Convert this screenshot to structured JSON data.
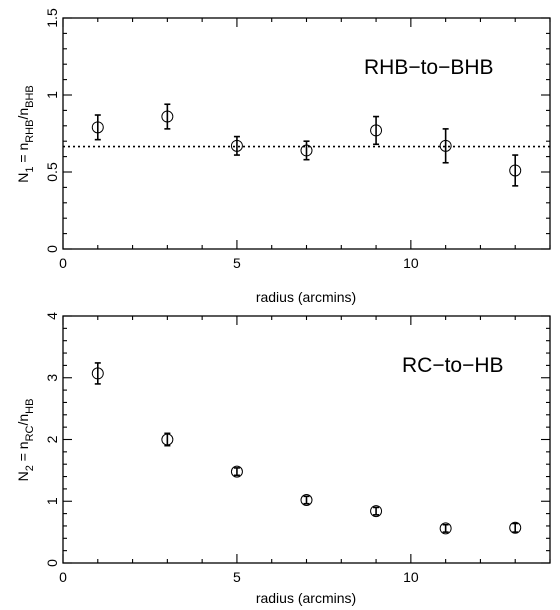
{
  "chart_data": [
    {
      "type": "scatter",
      "xlabel": "radius (arcmins)",
      "ylabel": "N_1 = n_RHB/n_BHB",
      "ylabel_main": "N",
      "ylabel_sub": "1",
      "ylabel_eq": " = n",
      "ylabel_num_sub": "RHB",
      "ylabel_slash": "/n",
      "ylabel_den_sub": "BHB",
      "annotation": "RHB−to−BHB",
      "xlim": [
        0,
        14
      ],
      "ylim": [
        0,
        1.5
      ],
      "xticks": [
        0,
        5,
        10
      ],
      "yticks": [
        0,
        0.5,
        1,
        1.5
      ],
      "grid": false,
      "reference_line": {
        "y": 0.665,
        "style": "dotted"
      },
      "x": [
        1,
        3,
        5,
        7,
        9,
        11,
        13
      ],
      "y": [
        0.79,
        0.86,
        0.67,
        0.64,
        0.77,
        0.67,
        0.51
      ],
      "err": [
        0.08,
        0.08,
        0.06,
        0.06,
        0.09,
        0.11,
        0.1
      ]
    },
    {
      "type": "scatter",
      "xlabel": "radius (arcmins)",
      "ylabel": "N_2 = n_RC/n_HB",
      "ylabel_main": "N",
      "ylabel_sub": "2",
      "ylabel_eq": " =  n",
      "ylabel_num_sub": "RC",
      "ylabel_slash": "/n",
      "ylabel_den_sub": "HB",
      "annotation": "RC−to−HB",
      "xlim": [
        0,
        14
      ],
      "ylim": [
        0,
        4
      ],
      "xticks": [
        0,
        5,
        10
      ],
      "yticks": [
        0,
        1,
        2,
        3,
        4
      ],
      "grid": false,
      "x": [
        1,
        3,
        5,
        7,
        9,
        11,
        13
      ],
      "y": [
        3.07,
        2.0,
        1.48,
        1.02,
        0.84,
        0.56,
        0.57
      ],
      "err": [
        0.17,
        0.1,
        0.06,
        0.06,
        0.06,
        0.06,
        0.07
      ]
    }
  ]
}
